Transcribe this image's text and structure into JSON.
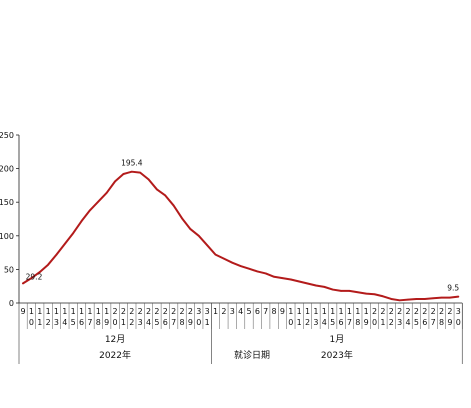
{
  "chart_data": {
    "type": "line",
    "title": "",
    "xlabel": "就诊日期",
    "ylabel": "",
    "ylim": [
      0,
      250
    ],
    "yticks": [
      0,
      50,
      100,
      150,
      200,
      250
    ],
    "grid": false,
    "legend": "none",
    "line_color": "#b31b1b",
    "x": [
      "12-09",
      "12-10",
      "12-11",
      "12-12",
      "12-13",
      "12-14",
      "12-15",
      "12-16",
      "12-17",
      "12-18",
      "12-19",
      "12-20",
      "12-21",
      "12-22",
      "12-23",
      "12-24",
      "12-25",
      "12-26",
      "12-27",
      "12-28",
      "12-29",
      "12-30",
      "12-31",
      "01-01",
      "01-02",
      "01-03",
      "01-04",
      "01-05",
      "01-06",
      "01-07",
      "01-08",
      "01-09",
      "01-10",
      "01-11",
      "01-12",
      "01-13",
      "01-14",
      "01-15",
      "01-16",
      "01-17",
      "01-18",
      "01-19",
      "01-20",
      "01-21",
      "01-22",
      "01-23",
      "01-24",
      "01-25",
      "01-26",
      "01-27",
      "01-28",
      "01-29",
      "01-30"
    ],
    "x_tick_labels": [
      [
        "9",
        ""
      ],
      [
        "1",
        "0"
      ],
      [
        "1",
        "1"
      ],
      [
        "1",
        "2"
      ],
      [
        "1",
        "3"
      ],
      [
        "1",
        "4"
      ],
      [
        "1",
        "5"
      ],
      [
        "1",
        "6"
      ],
      [
        "1",
        "7"
      ],
      [
        "1",
        "8"
      ],
      [
        "1",
        "9"
      ],
      [
        "2",
        "0"
      ],
      [
        "2",
        "1"
      ],
      [
        "2",
        "2"
      ],
      [
        "2",
        "3"
      ],
      [
        "2",
        "4"
      ],
      [
        "2",
        "5"
      ],
      [
        "2",
        "6"
      ],
      [
        "2",
        "7"
      ],
      [
        "2",
        "8"
      ],
      [
        "2",
        "9"
      ],
      [
        "3",
        "0"
      ],
      [
        "3",
        "1"
      ],
      [
        "1",
        ""
      ],
      [
        "2",
        ""
      ],
      [
        "3",
        ""
      ],
      [
        "4",
        ""
      ],
      [
        "5",
        ""
      ],
      [
        "6",
        ""
      ],
      [
        "7",
        ""
      ],
      [
        "8",
        ""
      ],
      [
        "9",
        ""
      ],
      [
        "1",
        "0"
      ],
      [
        "1",
        "1"
      ],
      [
        "1",
        "2"
      ],
      [
        "1",
        "3"
      ],
      [
        "1",
        "4"
      ],
      [
        "1",
        "5"
      ],
      [
        "1",
        "6"
      ],
      [
        "1",
        "7"
      ],
      [
        "1",
        "8"
      ],
      [
        "1",
        "9"
      ],
      [
        "2",
        "0"
      ],
      [
        "2",
        "1"
      ],
      [
        "2",
        "2"
      ],
      [
        "2",
        "3"
      ],
      [
        "2",
        "4"
      ],
      [
        "2",
        "5"
      ],
      [
        "2",
        "6"
      ],
      [
        "2",
        "7"
      ],
      [
        "2",
        "8"
      ],
      [
        "2",
        "9"
      ],
      [
        "3",
        "0"
      ]
    ],
    "values": [
      29.2,
      37,
      46,
      57,
      72,
      88,
      104,
      122,
      138,
      151,
      164,
      181,
      192,
      195.4,
      194,
      184,
      169,
      160,
      145,
      126,
      110,
      100,
      86,
      72,
      66,
      60,
      55,
      51,
      47,
      44,
      39,
      37,
      35,
      32,
      29,
      26,
      24,
      20,
      18,
      18,
      16,
      14,
      13,
      10,
      6,
      4,
      5,
      6,
      6,
      7,
      8,
      8,
      9.5
    ],
    "annotations": [
      {
        "label": "29.2",
        "index": 0
      },
      {
        "label": "195.4",
        "index": 13
      },
      {
        "label": "9.5",
        "index": 52
      }
    ],
    "months": [
      {
        "label": "12月",
        "year": "2022年",
        "start_index": 0,
        "end_index": 22
      },
      {
        "label": "1月",
        "year": "2023年",
        "start_index": 23,
        "end_index": 52
      }
    ]
  }
}
